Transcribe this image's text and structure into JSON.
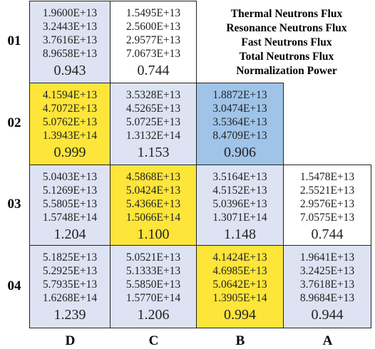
{
  "legend": [
    "Thermal Neutrons Flux",
    "Resonance Neutrons Flux",
    "Fast Neutrons Flux",
    "Total Neutrons Flux",
    "Normalization Power"
  ],
  "columns": [
    "D",
    "C",
    "B",
    "A"
  ],
  "rows": [
    {
      "label": "01",
      "cells": [
        {
          "fluxes": [
            "1.9600E+13",
            "3.2443E+13",
            "3.7616E+13",
            "8.9658E+13"
          ],
          "power": "0.943"
        },
        {
          "fluxes": [
            "1.5495E+13",
            "2.5600E+13",
            "2.9577E+13",
            "7.0673E+13"
          ],
          "power": "0.744"
        }
      ]
    },
    {
      "label": "02",
      "cells": [
        {
          "fluxes": [
            "4.1594E+13",
            "4.7072E+13",
            "5.0762E+13",
            "1.3943E+14"
          ],
          "power": "0.999"
        },
        {
          "fluxes": [
            "3.5328E+13",
            "4.5265E+13",
            "5.0725E+13",
            "1.3132E+14"
          ],
          "power": "1.153"
        },
        {
          "fluxes": [
            "1.8872E+13",
            "3.0474E+13",
            "3.5364E+13",
            "8.4709E+13"
          ],
          "power": "0.906"
        }
      ]
    },
    {
      "label": "03",
      "cells": [
        {
          "fluxes": [
            "5.0403E+13",
            "5.1269E+13",
            "5.5805E+13",
            "1.5748E+14"
          ],
          "power": "1.204"
        },
        {
          "fluxes": [
            "4.5868E+13",
            "5.0424E+13",
            "5.4366E+13",
            "1.5066E+14"
          ],
          "power": "1.100"
        },
        {
          "fluxes": [
            "3.5164E+13",
            "4.5152E+13",
            "5.0396E+13",
            "1.3071E+14"
          ],
          "power": "1.148"
        },
        {
          "fluxes": [
            "1.5478E+13",
            "2.5521E+13",
            "2.9576E+13",
            "7.0575E+13"
          ],
          "power": "0.744"
        }
      ]
    },
    {
      "label": "04",
      "cells": [
        {
          "fluxes": [
            "5.1825E+13",
            "5.2925E+13",
            "5.7935E+13",
            "1.6268E+14"
          ],
          "power": "1.239"
        },
        {
          "fluxes": [
            "5.0521E+13",
            "5.1333E+13",
            "5.5850E+13",
            "1.5770E+14"
          ],
          "power": "1.206"
        },
        {
          "fluxes": [
            "4.1424E+13",
            "4.6985E+13",
            "5.0642E+13",
            "1.3905E+14"
          ],
          "power": "0.994"
        },
        {
          "fluxes": [
            "1.9641E+13",
            "3.2425E+13",
            "3.7618E+13",
            "8.9684E+13"
          ],
          "power": "0.944"
        }
      ]
    }
  ]
}
